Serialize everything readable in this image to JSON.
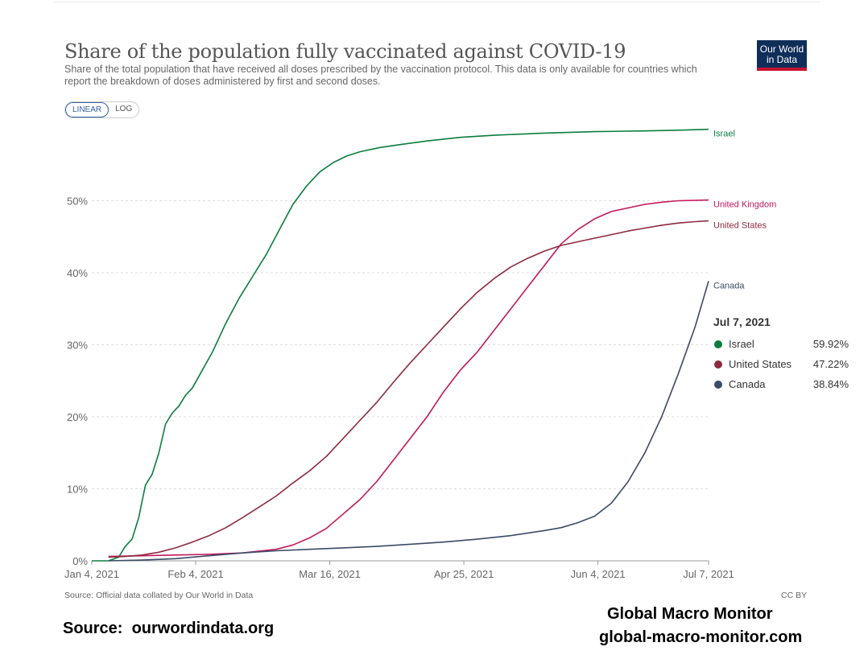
{
  "header": {
    "title": "Share of the population fully vaccinated against COVID-19",
    "subtitle": "Share of the total population that have received all doses prescribed by the vaccination protocol. This data is only available for countries which report the breakdown of doses administered by first and second doses.",
    "logo_line1": "Our World",
    "logo_line2": "in Data"
  },
  "controls": {
    "linear_label": "LINEAR",
    "log_label": "LOG"
  },
  "footer": {
    "source": "Source: Official data collated by Our World in Data",
    "license": "CC BY",
    "credit_left": "Source:  ourwordindata.org",
    "credit_right_1": "Global Macro Monitor",
    "credit_right_2": "global-macro-monitor.com"
  },
  "tooltip": {
    "date": "Jul 7, 2021",
    "rows": [
      {
        "name": "Israel",
        "value": "59.92%",
        "color": "#0b7d3e"
      },
      {
        "name": "United States",
        "value": "47.22%",
        "color": "#8c2a3f"
      },
      {
        "name": "Canada",
        "value": "38.84%",
        "color": "#3b4a66"
      }
    ]
  },
  "chart_data": {
    "type": "line",
    "title": "Share of the population fully vaccinated against COVID-19",
    "xlabel": "",
    "ylabel": "",
    "ylim": [
      0,
      60
    ],
    "y_ticks": [
      0,
      10,
      20,
      30,
      40,
      50
    ],
    "y_tick_labels": [
      "0%",
      "10%",
      "20%",
      "30%",
      "40%",
      "50%"
    ],
    "x_range_days": [
      0,
      184
    ],
    "x_ticks": [
      {
        "day": 0,
        "label": "Jan 4, 2021"
      },
      {
        "day": 31,
        "label": "Feb 4, 2021"
      },
      {
        "day": 71,
        "label": "Mar 16, 2021"
      },
      {
        "day": 111,
        "label": "Apr 25, 2021"
      },
      {
        "day": 151,
        "label": "Jun 4, 2021"
      },
      {
        "day": 184,
        "label": "Jul 7, 2021"
      }
    ],
    "series": [
      {
        "name": "Israel",
        "color": "#0b7d3e",
        "points": [
          [
            0,
            0
          ],
          [
            5,
            0
          ],
          [
            8,
            0.5
          ],
          [
            10,
            2
          ],
          [
            12,
            3
          ],
          [
            14,
            6
          ],
          [
            16,
            10.5
          ],
          [
            18,
            12
          ],
          [
            20,
            15
          ],
          [
            22,
            19
          ],
          [
            24,
            20.5
          ],
          [
            26,
            21.5
          ],
          [
            28,
            23
          ],
          [
            30,
            24
          ],
          [
            33,
            26.5
          ],
          [
            36,
            29
          ],
          [
            40,
            33
          ],
          [
            44,
            36.5
          ],
          [
            48,
            39.5
          ],
          [
            52,
            42.5
          ],
          [
            56,
            46
          ],
          [
            60,
            49.5
          ],
          [
            64,
            52
          ],
          [
            68,
            54
          ],
          [
            72,
            55.3
          ],
          [
            76,
            56.2
          ],
          [
            80,
            56.8
          ],
          [
            86,
            57.4
          ],
          [
            92,
            57.8
          ],
          [
            100,
            58.3
          ],
          [
            110,
            58.8
          ],
          [
            120,
            59.1
          ],
          [
            135,
            59.4
          ],
          [
            150,
            59.6
          ],
          [
            165,
            59.7
          ],
          [
            175,
            59.8
          ],
          [
            184,
            59.92
          ]
        ]
      },
      {
        "name": "United Kingdom",
        "color": "#c2185b",
        "points": [
          [
            5,
            0.6
          ],
          [
            15,
            0.7
          ],
          [
            25,
            0.8
          ],
          [
            35,
            0.9
          ],
          [
            45,
            1.1
          ],
          [
            55,
            1.6
          ],
          [
            60,
            2.2
          ],
          [
            65,
            3.2
          ],
          [
            70,
            4.5
          ],
          [
            75,
            6.5
          ],
          [
            80,
            8.5
          ],
          [
            85,
            11
          ],
          [
            90,
            14
          ],
          [
            95,
            17
          ],
          [
            100,
            20
          ],
          [
            105,
            23.5
          ],
          [
            110,
            26.5
          ],
          [
            115,
            29
          ],
          [
            120,
            32
          ],
          [
            125,
            35
          ],
          [
            130,
            38
          ],
          [
            135,
            41
          ],
          [
            140,
            44
          ],
          [
            145,
            46
          ],
          [
            150,
            47.5
          ],
          [
            155,
            48.5
          ],
          [
            160,
            49
          ],
          [
            165,
            49.5
          ],
          [
            170,
            49.8
          ],
          [
            175,
            50
          ],
          [
            184,
            50.1
          ]
        ]
      },
      {
        "name": "United States",
        "color": "#8c2a3f",
        "points": [
          [
            5,
            0.5
          ],
          [
            10,
            0.6
          ],
          [
            15,
            0.8
          ],
          [
            20,
            1.2
          ],
          [
            25,
            1.8
          ],
          [
            30,
            2.6
          ],
          [
            35,
            3.5
          ],
          [
            40,
            4.6
          ],
          [
            45,
            6
          ],
          [
            50,
            7.5
          ],
          [
            55,
            9
          ],
          [
            60,
            10.8
          ],
          [
            65,
            12.5
          ],
          [
            70,
            14.5
          ],
          [
            75,
            17
          ],
          [
            80,
            19.5
          ],
          [
            85,
            22
          ],
          [
            90,
            24.8
          ],
          [
            95,
            27.5
          ],
          [
            100,
            30
          ],
          [
            105,
            32.5
          ],
          [
            110,
            35
          ],
          [
            115,
            37.3
          ],
          [
            120,
            39.2
          ],
          [
            125,
            40.8
          ],
          [
            130,
            42
          ],
          [
            135,
            43
          ],
          [
            140,
            43.8
          ],
          [
            145,
            44.3
          ],
          [
            150,
            44.8
          ],
          [
            155,
            45.3
          ],
          [
            160,
            45.8
          ],
          [
            165,
            46.2
          ],
          [
            170,
            46.6
          ],
          [
            175,
            46.9
          ],
          [
            180,
            47.1
          ],
          [
            184,
            47.22
          ]
        ]
      },
      {
        "name": "Canada",
        "color": "#3b4a66",
        "points": [
          [
            5,
            0
          ],
          [
            15,
            0.1
          ],
          [
            25,
            0.3
          ],
          [
            35,
            0.7
          ],
          [
            45,
            1.1
          ],
          [
            55,
            1.4
          ],
          [
            65,
            1.6
          ],
          [
            75,
            1.8
          ],
          [
            85,
            2.0
          ],
          [
            95,
            2.3
          ],
          [
            105,
            2.6
          ],
          [
            115,
            3.0
          ],
          [
            125,
            3.5
          ],
          [
            135,
            4.2
          ],
          [
            140,
            4.6
          ],
          [
            145,
            5.3
          ],
          [
            150,
            6.2
          ],
          [
            155,
            8
          ],
          [
            160,
            11
          ],
          [
            165,
            15
          ],
          [
            170,
            20
          ],
          [
            175,
            26
          ],
          [
            180,
            32.5
          ],
          [
            184,
            38.84
          ]
        ]
      }
    ],
    "end_labels": [
      {
        "series": "Israel",
        "label": "Israel"
      },
      {
        "series": "United Kingdom",
        "label": "United Kingdom"
      },
      {
        "series": "United States",
        "label": "United States"
      },
      {
        "series": "Canada",
        "label": "Canada"
      }
    ]
  }
}
